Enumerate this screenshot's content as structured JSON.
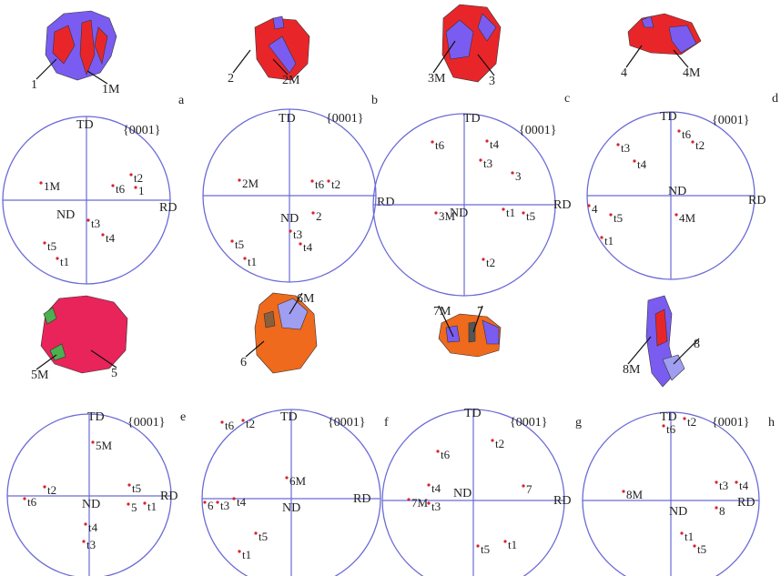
{
  "panels": [
    {
      "letter": "a",
      "grain_labels": [
        "1",
        "1M"
      ],
      "pole_figure": {
        "axis_top": "TD",
        "axis_right": "RD",
        "center": "ND",
        "plane": "{0001}",
        "points": [
          "1M",
          "t6",
          "t2",
          "1",
          "t3",
          "t4",
          "t5",
          "t1"
        ]
      }
    },
    {
      "letter": "b",
      "grain_labels": [
        "2",
        "2M"
      ],
      "pole_figure": {
        "axis_top": "TD",
        "axis_right": "RD",
        "center": "ND",
        "plane": "{0001}",
        "points": [
          "2M",
          "t6",
          "t2",
          "2",
          "t3",
          "t4",
          "t5",
          "t1"
        ]
      }
    },
    {
      "letter": "c",
      "grain_labels": [
        "3M",
        "3"
      ],
      "pole_figure": {
        "axis_top": "TD",
        "axis_right": "RD",
        "center": "ND",
        "plane": "{0001}",
        "points": [
          "t6",
          "t4",
          "t3",
          "3",
          "3M",
          "t1",
          "t5",
          "t2"
        ]
      }
    },
    {
      "letter": "d",
      "grain_labels": [
        "4",
        "4M"
      ],
      "pole_figure": {
        "axis_top": "TD",
        "axis_right": "RD",
        "center": "ND",
        "plane": "{0001}",
        "points": [
          "t6",
          "t2",
          "t3",
          "t4",
          "4",
          "t5",
          "4M",
          "t1"
        ]
      }
    },
    {
      "letter": "e",
      "grain_labels": [
        "5M",
        "5"
      ],
      "pole_figure": {
        "axis_top": "TD",
        "axis_right": "RD",
        "center": "ND",
        "plane": "{0001}",
        "points": [
          "5M",
          "t2",
          "t6",
          "t5",
          "t4",
          "t3",
          "5",
          "t1"
        ]
      }
    },
    {
      "letter": "f",
      "grain_labels": [
        "6M",
        "6"
      ],
      "pole_figure": {
        "axis_top": "TD",
        "axis_right": "RD",
        "center": "ND",
        "plane": "{0001}",
        "points": [
          "t6",
          "t2",
          "6M",
          "6",
          "t3",
          "t4",
          "t5",
          "t1"
        ]
      }
    },
    {
      "letter": "g",
      "grain_labels": [
        "7M",
        "7"
      ],
      "pole_figure": {
        "axis_top": "TD",
        "axis_right": "RD",
        "center": "ND",
        "plane": "{0001}",
        "points": [
          "t6",
          "t2",
          "7",
          "t4",
          "7M",
          "t3",
          "t5",
          "t1"
        ]
      }
    },
    {
      "letter": "h",
      "grain_labels": [
        "8M",
        "8"
      ],
      "pole_figure": {
        "axis_top": "TD",
        "axis_right": "RD",
        "center": "ND",
        "plane": "{0001}",
        "points": [
          "t6",
          "t2",
          "8M",
          "t3",
          "t4",
          "8",
          "t1",
          "t5"
        ]
      }
    }
  ]
}
